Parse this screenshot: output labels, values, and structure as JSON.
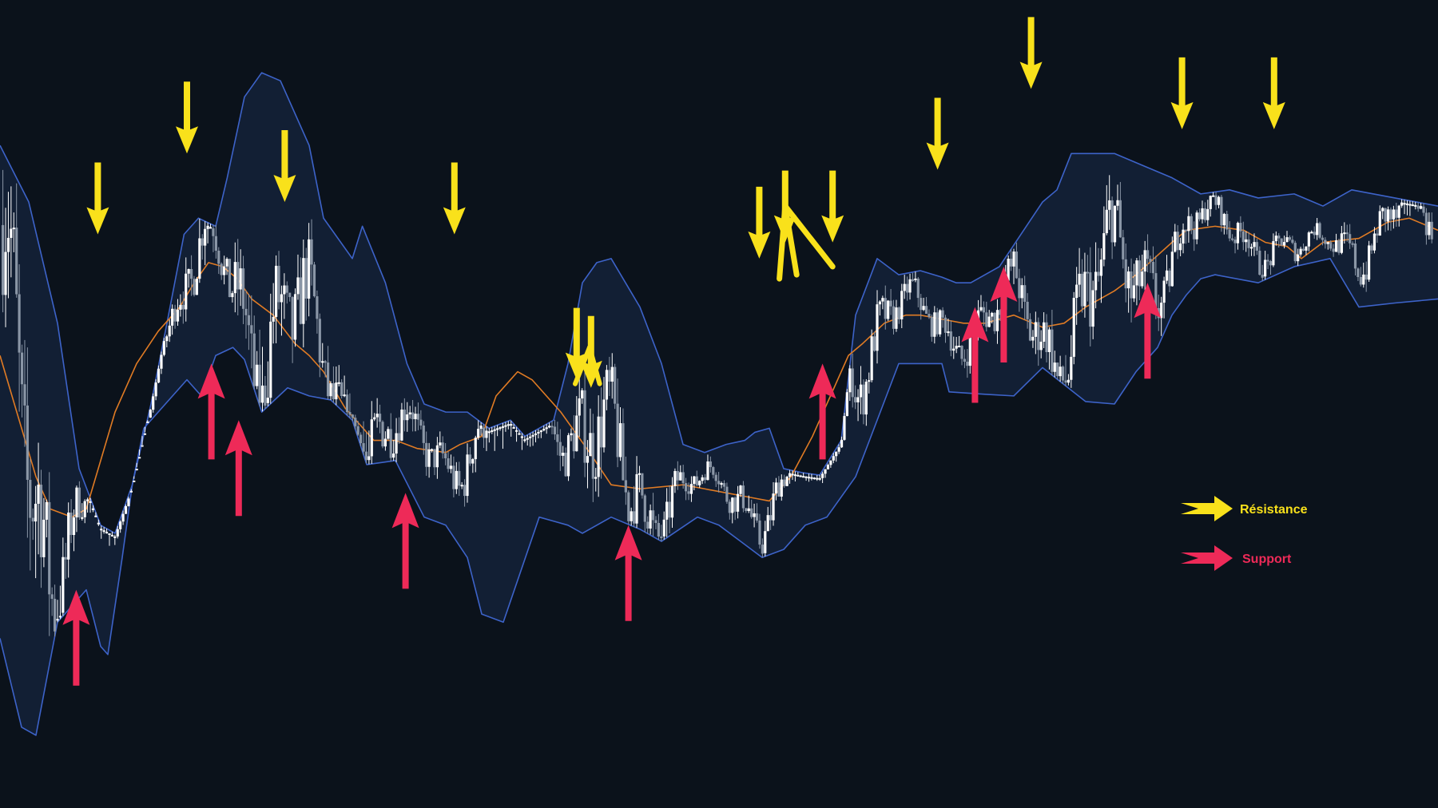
{
  "chart_data": {
    "type": "line",
    "title": "",
    "xlabel": "",
    "ylabel": "",
    "grid": false,
    "axes_visible": false,
    "xlim": [
      0,
      100
    ],
    "ylim": [
      0,
      100
    ],
    "series": [
      {
        "role": "upper-band",
        "color": "#3d63c9",
        "x": [
          0,
          2,
          4,
          5.5,
          7,
          8,
          9.2,
          10.5,
          11.5,
          12.8,
          13.8,
          15,
          15.8,
          17,
          18.2,
          19.5,
          20,
          21.5,
          22.5,
          24.5,
          25.2,
          26.8,
          28.3,
          29.5,
          31,
          32.5,
          34,
          35.5,
          36.5,
          37.5,
          38.5,
          39.5,
          40.5,
          41.5,
          42.5,
          44.5,
          46,
          47.5,
          49,
          50.5,
          51.8,
          52.5,
          53.5,
          54.5,
          55.8,
          57,
          58.5,
          59.5,
          61,
          62.5,
          64,
          65.5,
          66.5,
          67.5,
          68.5,
          69.5,
          71,
          72.5,
          73.5,
          74.5,
          76,
          77.5,
          79.5,
          81.5,
          83.5,
          85.5,
          87.5,
          90,
          92,
          94,
          97,
          100
        ],
        "y": [
          82,
          75,
          60,
          42,
          35,
          34,
          40,
          50,
          59,
          71,
          73,
          72,
          78,
          88,
          91,
          90,
          88,
          82,
          73,
          68,
          72,
          65,
          55,
          50,
          49,
          49,
          47,
          48,
          46,
          47,
          48,
          55,
          65,
          67.5,
          68,
          62,
          55,
          45,
          44,
          45,
          45.5,
          46.5,
          47,
          42,
          41.5,
          41.2,
          45.5,
          61,
          68,
          66,
          66.5,
          65.7,
          65,
          65,
          66,
          67,
          71,
          75,
          76.5,
          81,
          81,
          81,
          79.5,
          78,
          76,
          76.5,
          75.5,
          76,
          74.5,
          76.5,
          75.5,
          74.5
        ]
      },
      {
        "role": "lower-band",
        "color": "#3d63c9",
        "x": [
          0,
          1.5,
          2.5,
          4,
          5,
          6,
          7,
          7.5,
          8.5,
          9.2,
          10,
          11.5,
          13,
          14,
          15,
          16.2,
          17,
          18.2,
          20,
          21.5,
          23,
          24.5,
          25.5,
          27.5,
          29.5,
          31,
          32.5,
          33.5,
          35,
          37.5,
          38.5,
          39.5,
          40.5,
          42.5,
          44.5,
          46,
          48.5,
          50,
          51.5,
          53,
          54.5,
          56,
          57.5,
          59.5,
          62.5,
          64,
          65.5,
          66,
          68.5,
          70.5,
          72.5,
          75.5,
          77.5,
          79,
          80.5,
          81.5,
          82.5,
          83.5,
          84.5,
          87.5,
          90,
          92.5,
          94.5,
          97,
          100
        ],
        "y": [
          21,
          10,
          9,
          23,
          25,
          27,
          20,
          19,
          31,
          40,
          47,
          50,
          53,
          51,
          56,
          57,
          55.5,
          49,
          52,
          51,
          50.5,
          48,
          42.5,
          43,
          36,
          35,
          31,
          24,
          23,
          36,
          35.5,
          35,
          34,
          36,
          34.5,
          33,
          36,
          35,
          33,
          31,
          32,
          35,
          36,
          41,
          55,
          55,
          55,
          51.5,
          51.2,
          51,
          54.5,
          50.3,
          50,
          54,
          57,
          61,
          63.5,
          65.5,
          66,
          65,
          67,
          68,
          62,
          62.5,
          63
        ]
      },
      {
        "role": "middle-band",
        "color": "#e07b24",
        "x": [
          0,
          1.5,
          2.5,
          3.5,
          5,
          6,
          7,
          8,
          9.5,
          11,
          12.5,
          13.5,
          14.5,
          15.5,
          16.5,
          17.5,
          19,
          20.5,
          21.5,
          22.5,
          24,
          26,
          27.5,
          29,
          31,
          32,
          33.5,
          34.5,
          36,
          37,
          39,
          41,
          42.5,
          44.5,
          47.5,
          49,
          50.5,
          52,
          53.5,
          55,
          56.5,
          57.5,
          59,
          60,
          61.5,
          63,
          64,
          65.5,
          67,
          68.5,
          70.5,
          72.5,
          74,
          75.5,
          77.5,
          79,
          81.5,
          82.5,
          84.5,
          86.5,
          88,
          89.5,
          90.5,
          92,
          94.5,
          96.5,
          98,
          100
        ],
        "y": [
          56,
          47,
          41,
          37,
          36,
          37,
          43,
          49,
          55,
          59,
          62,
          65,
          67.5,
          67,
          65.5,
          63,
          61,
          57.5,
          56,
          54,
          49.5,
          45.5,
          45.5,
          44.5,
          44,
          45,
          46,
          51,
          54,
          53,
          49,
          44,
          40,
          39.5,
          40,
          39.5,
          39,
          38.5,
          38,
          41,
          46,
          50,
          56,
          57.5,
          60,
          61,
          61,
          60.5,
          60,
          60,
          61,
          59.5,
          60,
          62,
          64,
          66,
          70,
          71.5,
          72,
          71.5,
          70,
          69.5,
          68,
          70,
          70.5,
          72.5,
          73,
          71.5
        ]
      }
    ],
    "candle_pattern": "dense white and grey price bars oscillating between the bands",
    "annotations": {
      "resistance": [
        {
          "x": 13.0,
          "y": 81
        },
        {
          "x": 6.8,
          "y": 71
        },
        {
          "x": 19.8,
          "y": 75
        },
        {
          "x": 31.6,
          "y": 71
        },
        {
          "x": 40.1,
          "y": 53
        },
        {
          "x": 41.1,
          "y": 52
        },
        {
          "x": 52.8,
          "y": 68
        },
        {
          "x": 54.6,
          "y": 70
        },
        {
          "x": 57.9,
          "y": 70
        },
        {
          "x": 65.2,
          "y": 79
        },
        {
          "x": 71.7,
          "y": 89
        },
        {
          "x": 82.2,
          "y": 84
        },
        {
          "x": 88.6,
          "y": 84
        }
      ],
      "support": [
        {
          "x": 5.3,
          "y": 27
        },
        {
          "x": 14.7,
          "y": 55
        },
        {
          "x": 16.6,
          "y": 48
        },
        {
          "x": 28.2,
          "y": 39
        },
        {
          "x": 43.7,
          "y": 35
        },
        {
          "x": 57.2,
          "y": 55
        },
        {
          "x": 67.8,
          "y": 62
        },
        {
          "x": 69.8,
          "y": 67
        },
        {
          "x": 79.8,
          "y": 65
        }
      ]
    },
    "legend": {
      "position": "right",
      "items": [
        {
          "label": "Résistance",
          "color": "#f9e11b"
        },
        {
          "label": "Support",
          "color": "#ee2a58"
        }
      ]
    }
  },
  "colors": {
    "background": "#0b121b",
    "band_fill": "#142238",
    "band_line": "#3d63c9",
    "middle_line": "#e07b24",
    "candle_light": "#ffffff",
    "candle_dim": "#8a96a6",
    "resistance_arrow": "#f9e11b",
    "support_arrow": "#ee2a58"
  }
}
